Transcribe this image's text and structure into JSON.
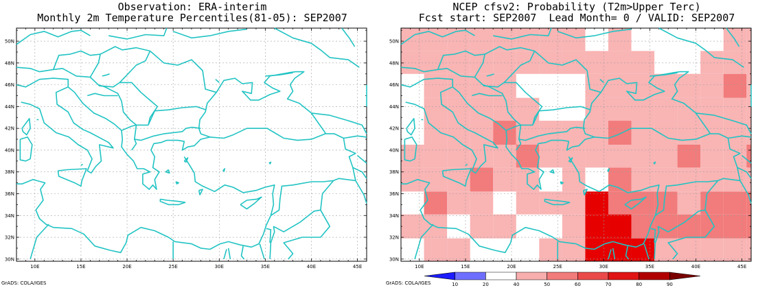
{
  "left_panel": {
    "title_line1": "Observation: ERA-interim",
    "title_line2": "Monthly 2m Temperature Percentiles(81-05): SEP2007",
    "footer": "GrADS: COLA/IGES"
  },
  "right_panel": {
    "title_line1": "NCEP cfsv2: Probability (T2m>Upper Terc)",
    "title_line2": "Fcst start: SEP2007  Lead Month= 0 / VALID: SEP2007",
    "footer": "GrADS: COLA/IGES"
  },
  "axes": {
    "lon_labels": [
      "10E",
      "15E",
      "20E",
      "25E",
      "30E",
      "35E",
      "40E",
      "45E"
    ],
    "lat_labels": [
      "30N",
      "32N",
      "34N",
      "36N",
      "38N",
      "40N",
      "42N",
      "44N",
      "46N",
      "48N",
      "50N"
    ]
  },
  "colorbar": {
    "labels": [
      "10",
      "20",
      "40",
      "50",
      "60",
      "70",
      "80",
      "90"
    ],
    "colors": [
      "#1c1cff",
      "#6f6fff",
      "#ffffff",
      "#f9aeae",
      "#f27b7b",
      "#ea4a4a",
      "#e01414",
      "#b00000",
      "#7a0000"
    ]
  },
  "colors": {
    "coast": "#21c3c3",
    "grid": "#a0a0a0",
    "prob_40_50": "#f9b4b4",
    "prob_50_60": "#f27b7b",
    "prob_70_80": "#e60000"
  }
}
